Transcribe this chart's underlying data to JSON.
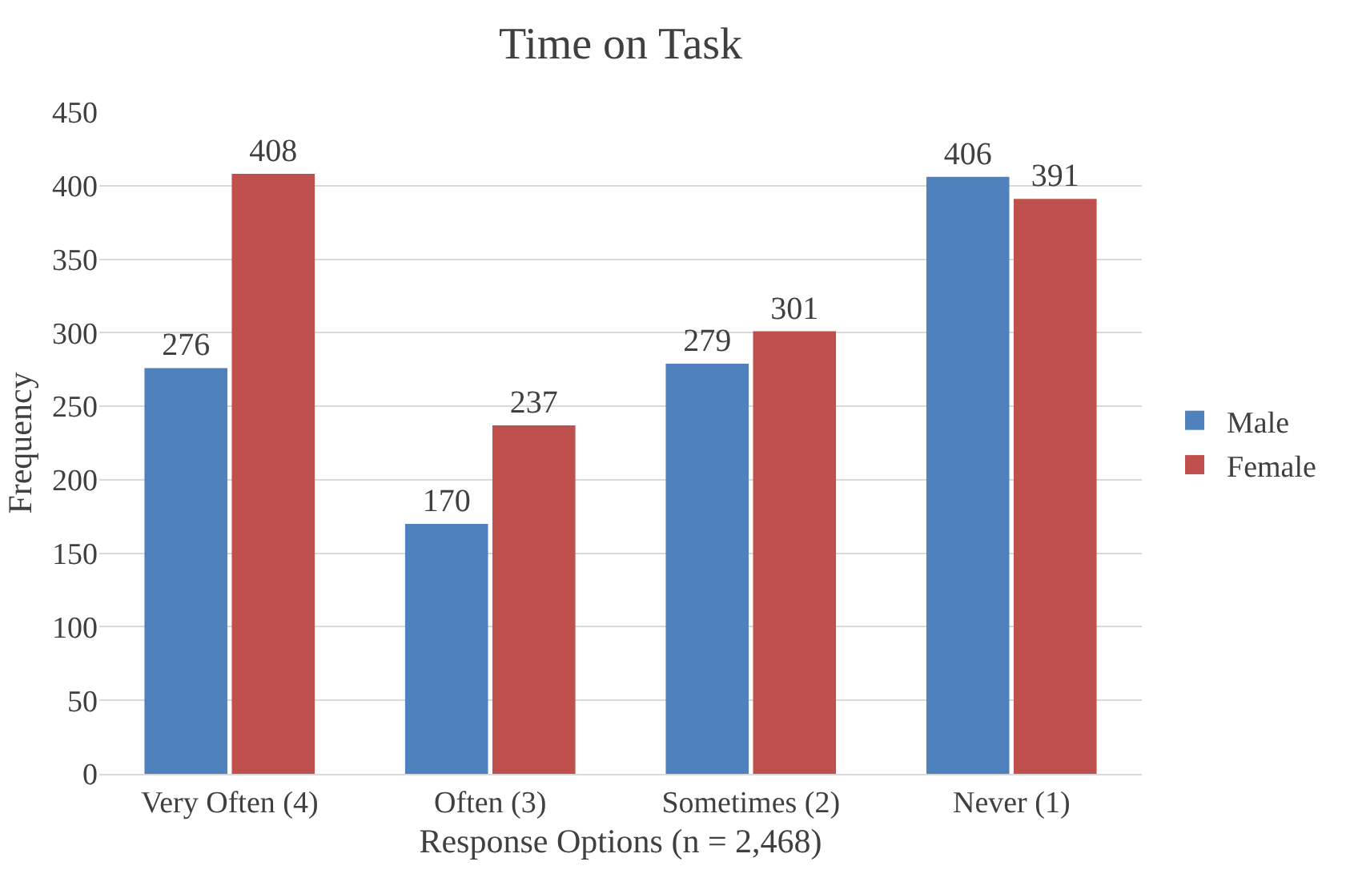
{
  "chart_data": {
    "type": "bar",
    "title": "Time on Task",
    "xlabel": "Response Options (n = 2,468)",
    "ylabel": "Frequency",
    "categories": [
      "Very Often (4)",
      "Often (3)",
      "Sometimes (2)",
      "Never (1)"
    ],
    "series": [
      {
        "name": "Male",
        "color": "#4f81bd",
        "values": [
          276,
          170,
          279,
          406
        ]
      },
      {
        "name": "Female",
        "color": "#c0504d",
        "values": [
          408,
          237,
          301,
          391
        ]
      }
    ],
    "ylim": [
      0,
      450
    ],
    "yticks": [
      0,
      50,
      100,
      150,
      200,
      250,
      300,
      350,
      400,
      450
    ],
    "grid": "y",
    "legend": "right",
    "data_labels": true
  }
}
